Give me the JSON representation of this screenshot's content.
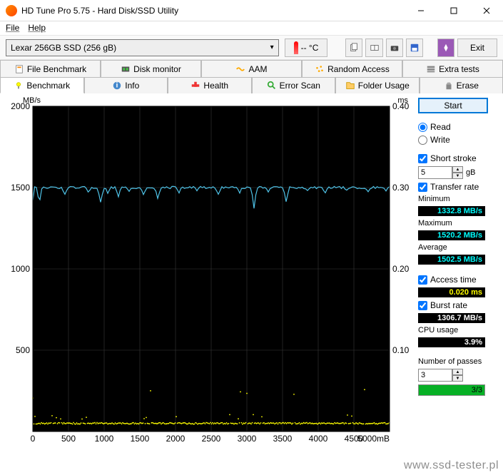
{
  "window": {
    "title": "HD Tune Pro 5.75 - Hard Disk/SSD Utility"
  },
  "menu": {
    "file": "File",
    "help": "Help"
  },
  "toolbar": {
    "drive": "Lexar 256GB SSD (256 gB)",
    "temp": "-- °C",
    "exit": "Exit"
  },
  "tabsTop": [
    {
      "label": "File Benchmark"
    },
    {
      "label": "Disk monitor"
    },
    {
      "label": "AAM"
    },
    {
      "label": "Random Access"
    },
    {
      "label": "Extra tests"
    }
  ],
  "tabsBottom": [
    {
      "label": "Benchmark",
      "active": true
    },
    {
      "label": "Info"
    },
    {
      "label": "Health"
    },
    {
      "label": "Error Scan"
    },
    {
      "label": "Folder Usage"
    },
    {
      "label": "Erase"
    }
  ],
  "chart": {
    "ylabel": "MB/s",
    "y2label": "ms",
    "xunit": "mB",
    "ylim": [
      0,
      2000
    ],
    "yticks": [
      500,
      1000,
      1500,
      2000
    ],
    "y2lim": [
      0,
      0.4
    ],
    "y2ticks": [
      "0.10",
      "0.20",
      "0.30",
      "0.40"
    ],
    "xlim": [
      0,
      5000
    ],
    "xticks": [
      0,
      500,
      1000,
      1500,
      2000,
      2500,
      3000,
      3500,
      4000,
      4500,
      5000
    ],
    "bg": "#000000",
    "grid": "#3a3a3a",
    "line_color": "#4fc3e8",
    "scatter_color": "#ffff00",
    "base_level": 1500,
    "dips": [
      {
        "x": 90,
        "d": 100
      },
      {
        "x": 450,
        "d": 40
      },
      {
        "x": 780,
        "d": 30
      },
      {
        "x": 950,
        "d": 90
      },
      {
        "x": 1050,
        "d": 35
      },
      {
        "x": 1200,
        "d": 50
      },
      {
        "x": 1350,
        "d": 30
      },
      {
        "x": 1550,
        "d": 40
      },
      {
        "x": 1750,
        "d": 70
      },
      {
        "x": 2050,
        "d": 30
      },
      {
        "x": 2300,
        "d": 20
      },
      {
        "x": 2600,
        "d": 40
      },
      {
        "x": 2900,
        "d": 30
      },
      {
        "x": 3100,
        "d": 130
      },
      {
        "x": 3300,
        "d": 30
      },
      {
        "x": 3550,
        "d": 90
      },
      {
        "x": 3850,
        "d": 25
      },
      {
        "x": 4100,
        "d": 30
      },
      {
        "x": 4400,
        "d": 20
      },
      {
        "x": 4700,
        "d": 30
      },
      {
        "x": 4950,
        "d": 20
      }
    ],
    "scatter_band1": 90,
    "scatter_band2": 50
  },
  "controls": {
    "start": "Start",
    "read": "Read",
    "write": "Write",
    "short_stroke": "Short stroke",
    "short_stroke_val": "5",
    "short_stroke_unit": "gB",
    "transfer_rate": "Transfer rate",
    "minimum": "Minimum",
    "minimum_val": "1332.8 MB/s",
    "maximum": "Maximum",
    "maximum_val": "1520.2 MB/s",
    "average": "Average",
    "average_val": "1502.5 MB/s",
    "access_time": "Access time",
    "access_time_val": "0.020 ms",
    "burst_rate": "Burst rate",
    "burst_rate_val": "1306.7 MB/s",
    "cpu": "CPU usage",
    "cpu_val": "3.9%",
    "passes": "Number of passes",
    "passes_val": "3",
    "progress_text": "3/3",
    "progress_pct": 100
  },
  "watermark": "www.ssd-tester.pl"
}
